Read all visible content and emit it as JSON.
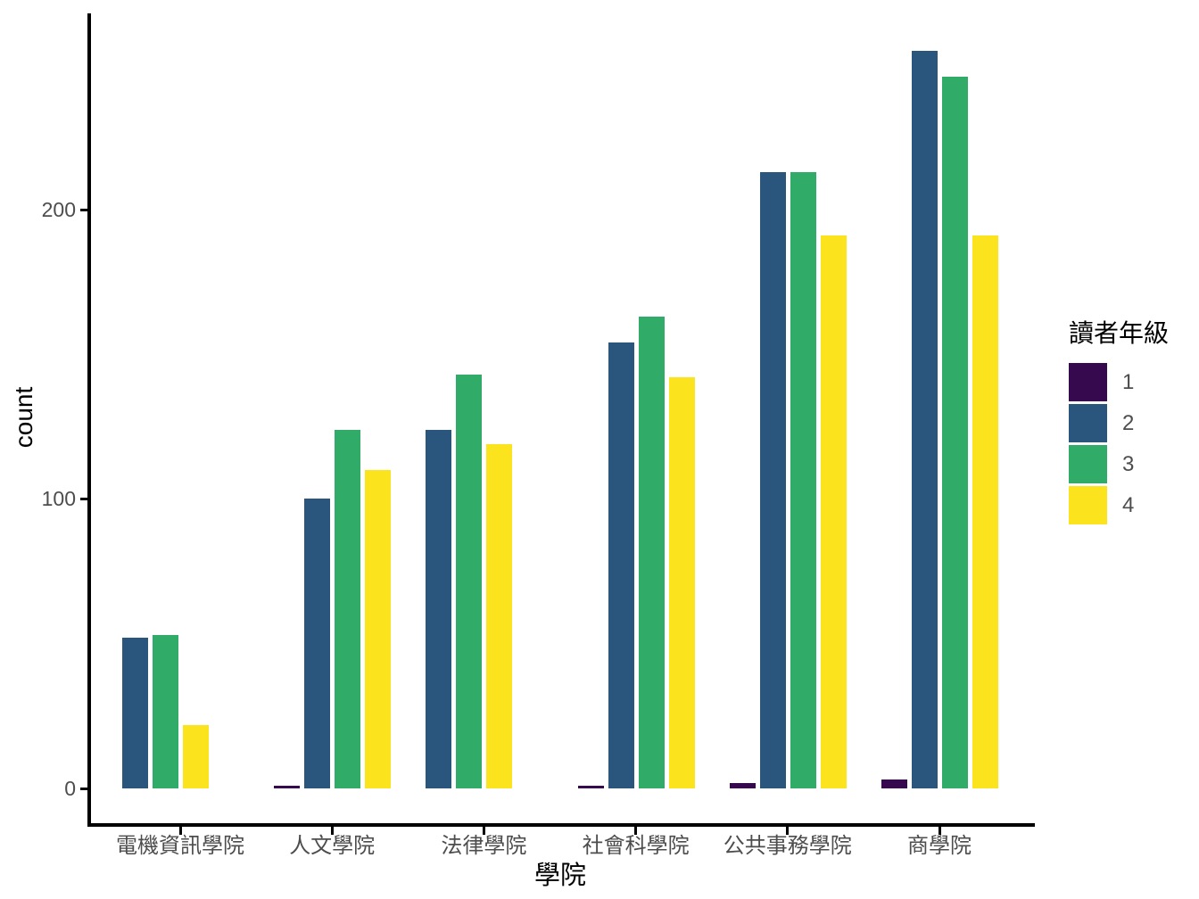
{
  "chart_data": {
    "type": "bar",
    "title": "",
    "xlabel": "學院",
    "ylabel": "count",
    "categories": [
      "電機資訊學院",
      "人文學院",
      "法律學院",
      "社會科學院",
      "公共事務學院",
      "商學院"
    ],
    "series": [
      {
        "name": "1",
        "color": "#36084E",
        "values": [
          null,
          1,
          null,
          1,
          2,
          3
        ]
      },
      {
        "name": "2",
        "color": "#2A567D",
        "values": [
          52,
          100,
          124,
          154,
          213,
          255
        ]
      },
      {
        "name": "3",
        "color": "#31AB68",
        "values": [
          53,
          124,
          143,
          163,
          213,
          246
        ]
      },
      {
        "name": "4",
        "color": "#FBE31D",
        "values": [
          22,
          110,
          119,
          142,
          191,
          191
        ]
      }
    ],
    "yticks": [
      0,
      100,
      200
    ],
    "ylim": [
      0,
      268
    ],
    "grid": false,
    "legend": {
      "title": "讀者年級",
      "position": "right"
    }
  },
  "colors": {
    "axis_line": "#000000",
    "tick_label": "#4D4D4D",
    "background": "#FFFFFF"
  }
}
